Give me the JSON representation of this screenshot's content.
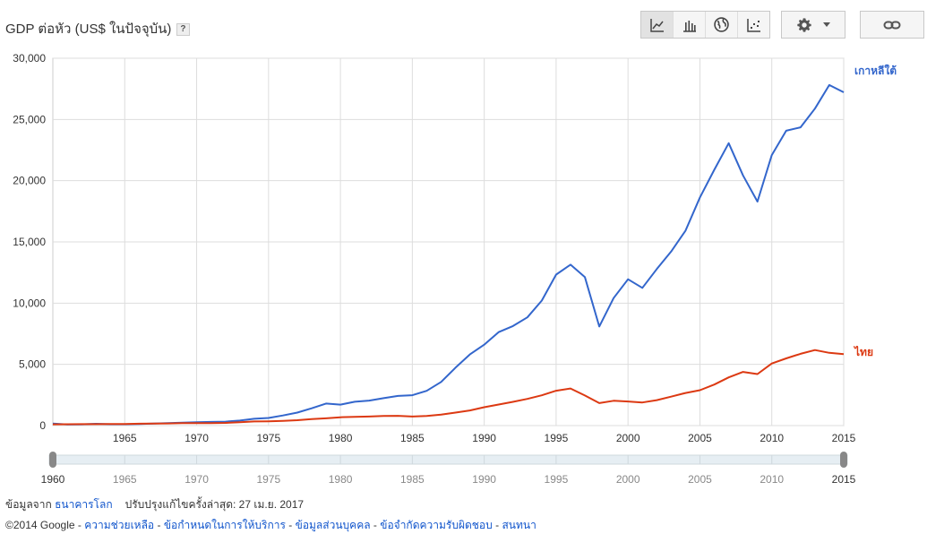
{
  "header": {
    "title": "GDP ต่อหัว (US$ ในปัจจุบัน)",
    "help_label": "?"
  },
  "toolbar": {
    "icons": [
      "line-chart-icon",
      "bar-chart-icon",
      "globe-icon",
      "scatter-icon"
    ],
    "active_index": 0,
    "settings_icon": "gear-icon",
    "link_icon": "link-icon"
  },
  "chart_data": {
    "type": "line",
    "x": [
      1960,
      1961,
      1962,
      1963,
      1964,
      1965,
      1966,
      1967,
      1968,
      1969,
      1970,
      1971,
      1972,
      1973,
      1974,
      1975,
      1976,
      1977,
      1978,
      1979,
      1980,
      1981,
      1982,
      1983,
      1984,
      1985,
      1986,
      1987,
      1988,
      1989,
      1990,
      1991,
      1992,
      1993,
      1994,
      1995,
      1996,
      1997,
      1998,
      1999,
      2000,
      2001,
      2002,
      2003,
      2004,
      2005,
      2006,
      2007,
      2008,
      2009,
      2010,
      2011,
      2012,
      2013,
      2014,
      2015
    ],
    "series": [
      {
        "name": "เกาหลีใต้",
        "color": "#3366cc",
        "values": [
          160,
          95,
          105,
          145,
          110,
          108,
          135,
          165,
          200,
          245,
          280,
          300,
          325,
          410,
          555,
          620,
          830,
          1060,
          1410,
          1800,
          1710,
          1950,
          2040,
          2240,
          2420,
          2480,
          2840,
          3560,
          4730,
          5810,
          6610,
          7630,
          8130,
          8840,
          10210,
          12330,
          13140,
          12130,
          8090,
          10410,
          11950,
          11250,
          12780,
          14210,
          15920,
          18640,
          20890,
          23060,
          20430,
          18290,
          22090,
          24080,
          24360,
          25890,
          27810,
          27220
        ]
      },
      {
        "name": "ไทย",
        "color": "#dc3912",
        "values": [
          100,
          110,
          115,
          120,
          125,
          135,
          155,
          165,
          175,
          195,
          195,
          200,
          220,
          270,
          335,
          350,
          390,
          440,
          530,
          590,
          680,
          720,
          740,
          780,
          800,
          740,
          790,
          890,
          1060,
          1240,
          1500,
          1720,
          1940,
          2180,
          2470,
          2850,
          3030,
          2460,
          1840,
          2030,
          1970,
          1890,
          2080,
          2360,
          2660,
          2890,
          3350,
          3940,
          4380,
          4210,
          5070,
          5490,
          5860,
          6170,
          5940,
          5840
        ]
      }
    ],
    "ylim": [
      0,
      30000
    ],
    "yticks": [
      "0",
      "5,000",
      "10,000",
      "15,000",
      "20,000",
      "25,000",
      "30,000"
    ],
    "ytick_values": [
      0,
      5000,
      10000,
      15000,
      20000,
      25000,
      30000
    ],
    "xticks": [
      "1965",
      "1970",
      "1975",
      "1980",
      "1985",
      "1990",
      "1995",
      "2000",
      "2005",
      "2010",
      "2015"
    ],
    "xtick_values": [
      1965,
      1970,
      1975,
      1980,
      1985,
      1990,
      1995,
      2000,
      2005,
      2010,
      2015
    ],
    "grid": true,
    "legend": "inline-right"
  },
  "slider": {
    "start_label": "1960",
    "end_label": "2015",
    "ticks": [
      "1965",
      "1970",
      "1975",
      "1980",
      "1985",
      "1990",
      "1995",
      "2000",
      "2005",
      "2010"
    ],
    "tick_values": [
      1965,
      1970,
      1975,
      1980,
      1985,
      1990,
      1995,
      2000,
      2005,
      2010
    ],
    "range": [
      1960,
      2015
    ]
  },
  "footer": {
    "source_prefix": "ข้อมูลจาก",
    "source_link": "ธนาคารโลก",
    "updated": "ปรับปรุงแก้ไขครั้งล่าสุด: 27 เม.ย. 2017",
    "copyright": "©2014 Google - ",
    "link_help": "ความช่วยเหลือ",
    "sep1": " - ",
    "link_terms": "ข้อกำหนดในการให้บริการ",
    "sep2": " - ",
    "link_privacy": "ข้อมูลส่วนบุคคล",
    "sep3": " - ",
    "link_disclaimer": "ข้อจำกัดความรับผิดชอบ",
    "sep4": " - ",
    "link_discuss": "สนทนา"
  }
}
